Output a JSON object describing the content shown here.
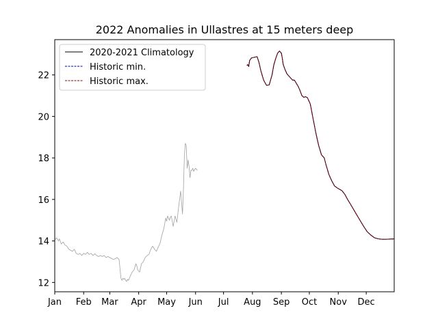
{
  "chart_data": {
    "type": "line",
    "title": "2022 Anomalies in Ullastres at 15 meters deep",
    "xlabel": "",
    "ylabel": "",
    "x_tick_labels": [
      "Jan",
      "Feb",
      "Mar",
      "Apr",
      "May",
      "Jun",
      "Jul",
      "Aug",
      "Sep",
      "Oct",
      "Nov",
      "Dec"
    ],
    "x_tick_days": [
      1,
      32,
      60,
      91,
      121,
      152,
      182,
      213,
      244,
      274,
      305,
      335
    ],
    "xlim_days": [
      1,
      365
    ],
    "ylim": [
      11.55,
      23.7
    ],
    "y_ticks": [
      12,
      14,
      16,
      18,
      20,
      22
    ],
    "grid": false,
    "legend_position": "top-left",
    "legend": [
      {
        "label": "2020-2021 Climatology",
        "style": "solid",
        "color": "#000000"
      },
      {
        "label": "Historic min.",
        "style": "dashed",
        "color": "#00008b"
      },
      {
        "label": "Historic max.",
        "style": "dashed",
        "color": "#8b0000"
      }
    ],
    "series": [
      {
        "name": "2020-2021 Climatology",
        "color": "#000000",
        "style": "solid",
        "x_days": [
          207,
          208,
          209,
          210,
          212,
          215,
          218,
          220,
          222,
          225,
          228,
          231,
          234,
          236,
          238,
          240,
          242,
          244,
          245,
          246,
          248,
          250,
          252,
          254,
          256,
          258,
          260,
          262,
          264,
          266,
          268,
          270,
          272,
          275,
          278,
          281,
          284,
          287,
          290,
          292,
          295,
          298,
          301,
          304,
          306,
          309,
          312,
          315,
          318,
          321,
          324,
          328,
          332,
          336,
          340,
          344,
          348,
          352,
          356,
          360,
          365
        ],
        "y": [
          22.45,
          22.5,
          22.4,
          22.7,
          22.82,
          22.85,
          22.88,
          22.6,
          22.2,
          21.75,
          21.5,
          21.52,
          22.0,
          22.5,
          22.8,
          23.05,
          23.15,
          23.05,
          22.8,
          22.5,
          22.25,
          22.05,
          21.95,
          21.85,
          21.75,
          21.75,
          21.6,
          21.45,
          21.25,
          21.0,
          20.92,
          20.95,
          20.9,
          20.6,
          19.9,
          19.2,
          18.6,
          18.15,
          18.0,
          17.65,
          17.2,
          16.9,
          16.65,
          16.55,
          16.5,
          16.42,
          16.25,
          16.0,
          15.78,
          15.55,
          15.32,
          15.02,
          14.72,
          14.45,
          14.28,
          14.15,
          14.1,
          14.08,
          14.08,
          14.09,
          14.1
        ]
      },
      {
        "name": "Historic min.",
        "color": "#00008b",
        "style": "dashed",
        "x_days": [
          207,
          208,
          209,
          210,
          212,
          215,
          218,
          220,
          222,
          225,
          228,
          231,
          234,
          236,
          238,
          240,
          242,
          244,
          245,
          246,
          248,
          250,
          252,
          254,
          256,
          258,
          260,
          262,
          264,
          266,
          268,
          270,
          272,
          275,
          278,
          281,
          284,
          287,
          290,
          292,
          295,
          298,
          301,
          304,
          306,
          309,
          312,
          315,
          318,
          321,
          324,
          328,
          332,
          336,
          340,
          344,
          348,
          352,
          356,
          360,
          365
        ],
        "y": [
          22.45,
          22.5,
          22.4,
          22.7,
          22.82,
          22.85,
          22.88,
          22.6,
          22.2,
          21.75,
          21.5,
          21.52,
          22.0,
          22.5,
          22.8,
          23.05,
          23.15,
          23.05,
          22.8,
          22.5,
          22.25,
          22.05,
          21.95,
          21.85,
          21.75,
          21.75,
          21.6,
          21.45,
          21.25,
          21.0,
          20.92,
          20.95,
          20.9,
          20.6,
          19.9,
          19.2,
          18.6,
          18.15,
          18.0,
          17.65,
          17.2,
          16.9,
          16.65,
          16.55,
          16.5,
          16.42,
          16.25,
          16.0,
          15.78,
          15.55,
          15.32,
          15.02,
          14.72,
          14.45,
          14.28,
          14.15,
          14.1,
          14.08,
          14.08,
          14.09,
          14.1
        ]
      },
      {
        "name": "Historic max.",
        "color": "#8b0000",
        "style": "dashed",
        "x_days": [
          207,
          208,
          209,
          210,
          212,
          215,
          218,
          220,
          222,
          225,
          228,
          231,
          234,
          236,
          238,
          240,
          242,
          244,
          245,
          246,
          248,
          250,
          252,
          254,
          256,
          258,
          260,
          262,
          264,
          266,
          268,
          270,
          272,
          275,
          278,
          281,
          284,
          287,
          290,
          292,
          295,
          298,
          301,
          304,
          306,
          309,
          312,
          315,
          318,
          321,
          324,
          328,
          332,
          336,
          340,
          344,
          348,
          352,
          356,
          360,
          365
        ],
        "y": [
          22.45,
          22.5,
          22.4,
          22.7,
          22.82,
          22.85,
          22.88,
          22.6,
          22.2,
          21.75,
          21.5,
          21.52,
          22.0,
          22.5,
          22.8,
          23.05,
          23.15,
          23.05,
          22.8,
          22.5,
          22.25,
          22.05,
          21.95,
          21.85,
          21.75,
          21.75,
          21.6,
          21.45,
          21.25,
          21.0,
          20.92,
          20.95,
          20.9,
          20.6,
          19.9,
          19.2,
          18.6,
          18.15,
          18.0,
          17.65,
          17.2,
          16.9,
          16.65,
          16.55,
          16.5,
          16.42,
          16.25,
          16.0,
          15.78,
          15.55,
          15.32,
          15.02,
          14.72,
          14.45,
          14.28,
          14.15,
          14.1,
          14.08,
          14.08,
          14.09,
          14.1
        ]
      },
      {
        "name": "",
        "color": "#a0a0a0",
        "style": "solid",
        "x_days": [
          1,
          3,
          5,
          6,
          8,
          10,
          12,
          14,
          16,
          18,
          20,
          22,
          24,
          26,
          28,
          30,
          32,
          34,
          36,
          38,
          40,
          42,
          44,
          46,
          48,
          50,
          52,
          54,
          56,
          58,
          60,
          62,
          64,
          66,
          68,
          70,
          72,
          73,
          74,
          75,
          76,
          77,
          78,
          79,
          80,
          81,
          82,
          84,
          86,
          88,
          89,
          90,
          92,
          94,
          96,
          98,
          100,
          102,
          104,
          106,
          108,
          110,
          112,
          114,
          116,
          118,
          120,
          121,
          122,
          124,
          125,
          126,
          128,
          130,
          132,
          133,
          134,
          136,
          138,
          139,
          140,
          141,
          142,
          143,
          144,
          145,
          146,
          147,
          148,
          149,
          150,
          151,
          152,
          153,
          154
        ],
        "y": [
          14.05,
          14.15,
          14.0,
          14.1,
          13.85,
          13.95,
          13.8,
          13.75,
          13.6,
          13.55,
          13.5,
          13.6,
          13.4,
          13.35,
          13.4,
          13.3,
          13.4,
          13.35,
          13.45,
          13.35,
          13.4,
          13.3,
          13.38,
          13.3,
          13.25,
          13.3,
          13.25,
          13.3,
          13.2,
          13.25,
          13.2,
          13.15,
          13.1,
          13.15,
          13.2,
          13.1,
          12.2,
          12.1,
          12.2,
          12.15,
          12.2,
          12.1,
          12.05,
          12.15,
          12.1,
          12.2,
          12.3,
          12.5,
          12.6,
          12.9,
          12.8,
          12.6,
          12.5,
          12.9,
          13.0,
          13.2,
          13.3,
          13.35,
          13.6,
          13.75,
          13.6,
          13.5,
          13.7,
          13.9,
          14.3,
          14.6,
          15.1,
          14.95,
          15.2,
          15.0,
          15.15,
          15.2,
          14.7,
          15.2,
          14.9,
          15.3,
          15.7,
          16.4,
          15.3,
          16.5,
          18.1,
          18.7,
          18.6,
          17.5,
          17.9,
          17.6,
          17.05,
          17.4,
          17.4,
          17.5,
          17.35,
          17.45,
          17.5,
          17.45,
          17.4
        ]
      }
    ]
  }
}
